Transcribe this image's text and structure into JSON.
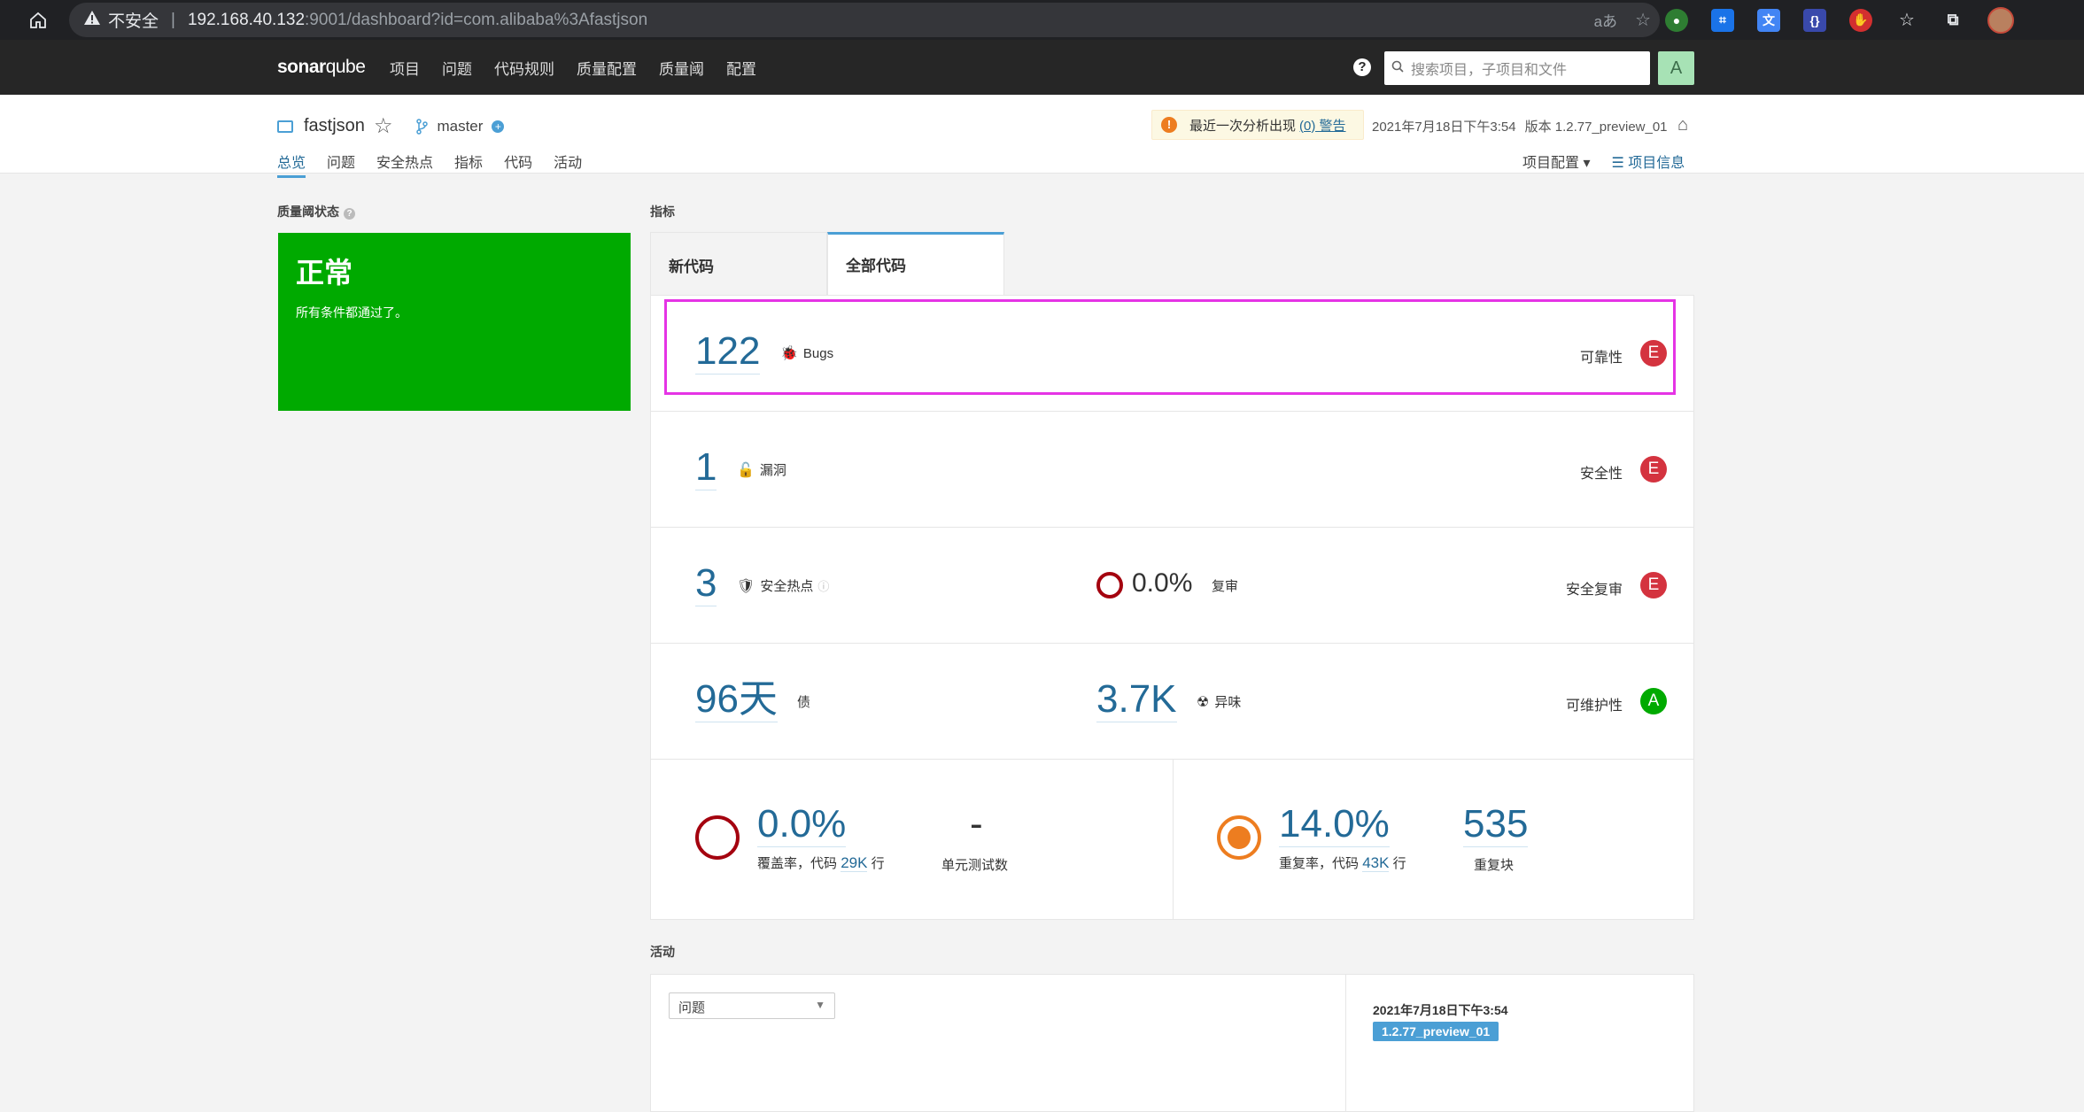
{
  "browser": {
    "security_label": "不安全",
    "url_host": "192.168.40.132",
    "url_rest": ":9001/dashboard?id=com.alibaba%3Afastjson"
  },
  "nav": {
    "logo_bold": "sonar",
    "logo_light": "qube",
    "items": [
      "项目",
      "问题",
      "代码规则",
      "质量配置",
      "质量阈",
      "配置"
    ],
    "search_placeholder": "搜索项目，子项目和文件",
    "user_initial": "A"
  },
  "project": {
    "name": "fastjson",
    "branch": "master",
    "warning_text": "最近一次分析出现",
    "warning_link": "(0) 警告",
    "date": "2021年7月18日下午3:54",
    "version": "版本 1.2.77_preview_01",
    "tabs": [
      "总览",
      "问题",
      "安全热点",
      "指标",
      "代码",
      "活动"
    ],
    "right_links": {
      "config": "项目配置 ▾",
      "info": "项目信息"
    }
  },
  "quality_gate": {
    "label": "质量阈状态",
    "status": "正常",
    "message": "所有条件都通过了。"
  },
  "metrics": {
    "label": "指标",
    "tab_new": "新代码",
    "tab_all": "全部代码",
    "bugs": {
      "value": "122",
      "label": "Bugs",
      "rating_label": "可靠性",
      "rating": "E"
    },
    "vuln": {
      "value": "1",
      "label": "漏洞",
      "rating_label": "安全性",
      "rating": "E"
    },
    "hotspots": {
      "value": "3",
      "label": "安全热点",
      "review_value": "0.0%",
      "review_label": "复审",
      "rating_label": "安全复审",
      "rating": "E"
    },
    "debt": {
      "value": "96天",
      "label": "债",
      "smells_value": "3.7K",
      "smells_label": "异味",
      "rating_label": "可维护性",
      "rating": "A"
    },
    "coverage": {
      "value": "0.0%",
      "label_pre": "覆盖率，代码",
      "lines": "29K",
      "label_post": "行",
      "tests_value": "-",
      "tests_label": "单元测试数"
    },
    "duplication": {
      "value": "14.0%",
      "label_pre": "重复率，代码",
      "lines": "43K",
      "label_post": "行",
      "blocks_value": "535",
      "blocks_label": "重复块"
    }
  },
  "activity": {
    "label": "活动",
    "filter": "问题",
    "date": "2021年7月18日下午3:54",
    "version": "1.2.77_preview_01"
  }
}
